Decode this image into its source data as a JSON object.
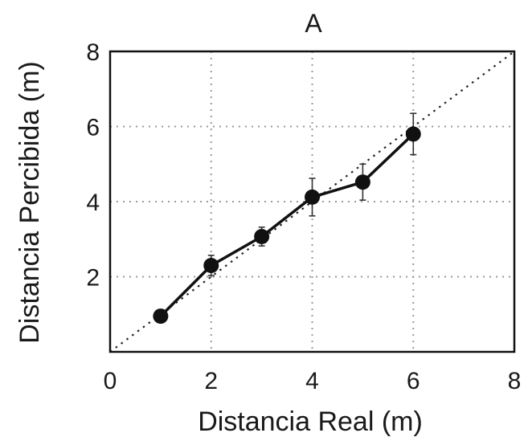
{
  "chart_data": {
    "type": "line",
    "title": "A",
    "xlabel": "Distancia Real (m)",
    "ylabel": "Distancia Percibida (m)",
    "xlim": [
      0,
      8
    ],
    "ylim": [
      0,
      8
    ],
    "x_ticks": [
      0,
      2,
      4,
      6,
      8
    ],
    "y_ticks": [
      2,
      4,
      6,
      8
    ],
    "x_tick_labels": [
      "0",
      "2",
      "4",
      "6",
      "8"
    ],
    "y_tick_labels": [
      "2",
      "4",
      "6",
      "8"
    ],
    "grid": true,
    "grid_style": "dotted",
    "reference_line": {
      "style": "dotted",
      "from": [
        0,
        0
      ],
      "to": [
        8,
        8
      ]
    },
    "series": [
      {
        "x": [
          1,
          2,
          3,
          4,
          5,
          6
        ],
        "values": [
          0.95,
          2.3,
          3.07,
          4.12,
          4.52,
          5.8
        ],
        "error": [
          0,
          0.27,
          0.25,
          0.5,
          0.48,
          0.55
        ],
        "color": "#111111",
        "marker": "circle"
      }
    ]
  }
}
